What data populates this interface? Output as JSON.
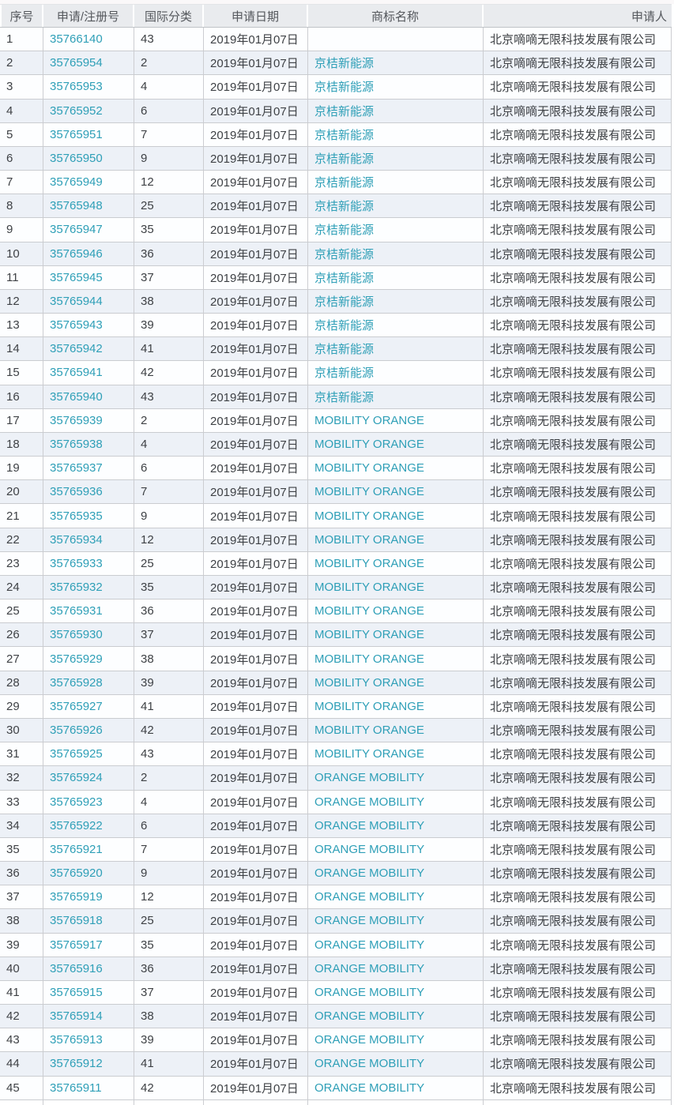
{
  "colors": {
    "link_teal": "#2e9fb7",
    "header_bg": "#e9ebee",
    "row_alt_bg": "#edf1f7",
    "row_border": "#caccd0"
  },
  "table": {
    "headers": [
      "序号",
      "申请/注册号",
      "国际分类",
      "申请日期",
      "商标名称",
      "申请人"
    ],
    "date_all_rows": "2019年01月07日",
    "applicant_all_rows": "北京嘀嘀无限科技发展有限公司",
    "trademarks": [
      "",
      "京桔新能源",
      "MOBILITY ORANGE",
      "ORANGE MOBILITY"
    ],
    "rows": [
      {
        "no": "1",
        "reg_no": "35766140",
        "intl_class": "43",
        "trademark": ""
      },
      {
        "no": "2",
        "reg_no": "35765954",
        "intl_class": "2",
        "trademark": "京桔新能源"
      },
      {
        "no": "3",
        "reg_no": "35765953",
        "intl_class": "4",
        "trademark": "京桔新能源"
      },
      {
        "no": "4",
        "reg_no": "35765952",
        "intl_class": "6",
        "trademark": "京桔新能源"
      },
      {
        "no": "5",
        "reg_no": "35765951",
        "intl_class": "7",
        "trademark": "京桔新能源"
      },
      {
        "no": "6",
        "reg_no": "35765950",
        "intl_class": "9",
        "trademark": "京桔新能源"
      },
      {
        "no": "7",
        "reg_no": "35765949",
        "intl_class": "12",
        "trademark": "京桔新能源"
      },
      {
        "no": "8",
        "reg_no": "35765948",
        "intl_class": "25",
        "trademark": "京桔新能源"
      },
      {
        "no": "9",
        "reg_no": "35765947",
        "intl_class": "35",
        "trademark": "京桔新能源"
      },
      {
        "no": "10",
        "reg_no": "35765946",
        "intl_class": "36",
        "trademark": "京桔新能源"
      },
      {
        "no": "11",
        "reg_no": "35765945",
        "intl_class": "37",
        "trademark": "京桔新能源"
      },
      {
        "no": "12",
        "reg_no": "35765944",
        "intl_class": "38",
        "trademark": "京桔新能源"
      },
      {
        "no": "13",
        "reg_no": "35765943",
        "intl_class": "39",
        "trademark": "京桔新能源"
      },
      {
        "no": "14",
        "reg_no": "35765942",
        "intl_class": "41",
        "trademark": "京桔新能源"
      },
      {
        "no": "15",
        "reg_no": "35765941",
        "intl_class": "42",
        "trademark": "京桔新能源"
      },
      {
        "no": "16",
        "reg_no": "35765940",
        "intl_class": "43",
        "trademark": "京桔新能源"
      },
      {
        "no": "17",
        "reg_no": "35765939",
        "intl_class": "2",
        "trademark": "MOBILITY ORANGE"
      },
      {
        "no": "18",
        "reg_no": "35765938",
        "intl_class": "4",
        "trademark": "MOBILITY ORANGE"
      },
      {
        "no": "19",
        "reg_no": "35765937",
        "intl_class": "6",
        "trademark": "MOBILITY ORANGE"
      },
      {
        "no": "20",
        "reg_no": "35765936",
        "intl_class": "7",
        "trademark": "MOBILITY ORANGE"
      },
      {
        "no": "21",
        "reg_no": "35765935",
        "intl_class": "9",
        "trademark": "MOBILITY ORANGE"
      },
      {
        "no": "22",
        "reg_no": "35765934",
        "intl_class": "12",
        "trademark": "MOBILITY ORANGE"
      },
      {
        "no": "23",
        "reg_no": "35765933",
        "intl_class": "25",
        "trademark": "MOBILITY ORANGE"
      },
      {
        "no": "24",
        "reg_no": "35765932",
        "intl_class": "35",
        "trademark": "MOBILITY ORANGE"
      },
      {
        "no": "25",
        "reg_no": "35765931",
        "intl_class": "36",
        "trademark": "MOBILITY ORANGE"
      },
      {
        "no": "26",
        "reg_no": "35765930",
        "intl_class": "37",
        "trademark": "MOBILITY ORANGE"
      },
      {
        "no": "27",
        "reg_no": "35765929",
        "intl_class": "38",
        "trademark": "MOBILITY ORANGE"
      },
      {
        "no": "28",
        "reg_no": "35765928",
        "intl_class": "39",
        "trademark": "MOBILITY ORANGE"
      },
      {
        "no": "29",
        "reg_no": "35765927",
        "intl_class": "41",
        "trademark": "MOBILITY ORANGE"
      },
      {
        "no": "30",
        "reg_no": "35765926",
        "intl_class": "42",
        "trademark": "MOBILITY ORANGE"
      },
      {
        "no": "31",
        "reg_no": "35765925",
        "intl_class": "43",
        "trademark": "MOBILITY ORANGE"
      },
      {
        "no": "32",
        "reg_no": "35765924",
        "intl_class": "2",
        "trademark": "ORANGE MOBILITY"
      },
      {
        "no": "33",
        "reg_no": "35765923",
        "intl_class": "4",
        "trademark": "ORANGE MOBILITY"
      },
      {
        "no": "34",
        "reg_no": "35765922",
        "intl_class": "6",
        "trademark": "ORANGE MOBILITY"
      },
      {
        "no": "35",
        "reg_no": "35765921",
        "intl_class": "7",
        "trademark": "ORANGE MOBILITY"
      },
      {
        "no": "36",
        "reg_no": "35765920",
        "intl_class": "9",
        "trademark": "ORANGE MOBILITY"
      },
      {
        "no": "37",
        "reg_no": "35765919",
        "intl_class": "12",
        "trademark": "ORANGE MOBILITY"
      },
      {
        "no": "38",
        "reg_no": "35765918",
        "intl_class": "25",
        "trademark": "ORANGE MOBILITY"
      },
      {
        "no": "39",
        "reg_no": "35765917",
        "intl_class": "35",
        "trademark": "ORANGE MOBILITY"
      },
      {
        "no": "40",
        "reg_no": "35765916",
        "intl_class": "36",
        "trademark": "ORANGE MOBILITY"
      },
      {
        "no": "41",
        "reg_no": "35765915",
        "intl_class": "37",
        "trademark": "ORANGE MOBILITY"
      },
      {
        "no": "42",
        "reg_no": "35765914",
        "intl_class": "38",
        "trademark": "ORANGE MOBILITY"
      },
      {
        "no": "43",
        "reg_no": "35765913",
        "intl_class": "39",
        "trademark": "ORANGE MOBILITY"
      },
      {
        "no": "44",
        "reg_no": "35765912",
        "intl_class": "41",
        "trademark": "ORANGE MOBILITY"
      },
      {
        "no": "45",
        "reg_no": "35765911",
        "intl_class": "42",
        "trademark": "ORANGE MOBILITY"
      }
    ]
  }
}
